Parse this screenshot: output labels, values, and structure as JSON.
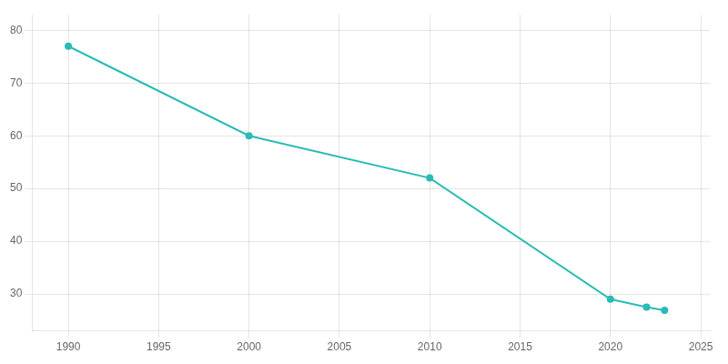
{
  "chart_data": {
    "type": "line",
    "x": [
      1990,
      2000,
      2010,
      2020,
      2022,
      2023
    ],
    "values": [
      77.0,
      60.0,
      52.0,
      29.0,
      27.5,
      26.9
    ],
    "color": "#2abbb5",
    "marker": "circle",
    "xlim": [
      1988,
      2025.5
    ],
    "ylim": [
      23,
      83
    ],
    "xticks": [
      1990,
      1995,
      2000,
      2005,
      2010,
      2015,
      2020,
      2025
    ],
    "yticks": [
      30,
      40,
      50,
      60,
      70,
      80
    ],
    "grid": true
  }
}
